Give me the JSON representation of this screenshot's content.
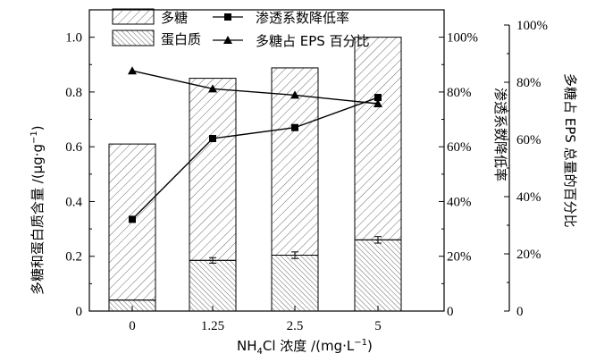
{
  "chart_data": {
    "type": "bar",
    "categories": [
      "0",
      "1.25",
      "2.5",
      "5"
    ],
    "series": [
      {
        "name": "多糖",
        "kind": "stacked-bar",
        "axis": "left",
        "values": [
          0.57,
          0.665,
          0.684,
          0.74
        ]
      },
      {
        "name": "蛋白质",
        "kind": "stacked-bar",
        "axis": "left",
        "values": [
          0.04,
          0.185,
          0.204,
          0.26
        ],
        "errors": [
          0.0,
          0.01,
          0.012,
          0.012
        ]
      },
      {
        "name": "渗透系数降低率",
        "kind": "line",
        "marker": "square",
        "axis": "right1",
        "unit": "%",
        "values": [
          33.5,
          63,
          67,
          78
        ]
      },
      {
        "name": "多糖占 EPS 百分比",
        "kind": "line",
        "marker": "triangle",
        "axis": "right2",
        "unit": "%",
        "values": [
          84,
          77.7,
          75.5,
          72.5
        ]
      }
    ],
    "xlabel_parts": {
      "pre": "NH",
      "sub": "4",
      "post": "Cl 浓度 /(mg·L",
      "sup": "−1",
      "end": ")"
    },
    "ylabel_parts": {
      "pre": "多糖和蛋白质含量 /(μg·g",
      "sup": "−1",
      "end": ")"
    },
    "y2label": "渗透系数降低率",
    "y3label": "多糖占 EPS 总量的百分比",
    "ylim": [
      0,
      1.1
    ],
    "y2lim": [
      0,
      110
    ],
    "y3lim": [
      0,
      100
    ],
    "yticks": [
      "0",
      "0.2",
      "0.4",
      "0.6",
      "0.8",
      "1.0"
    ],
    "y2ticks": [
      "0",
      "20%",
      "40%",
      "60%",
      "80%",
      "100%"
    ],
    "y3ticks": [
      "0",
      "20%",
      "40%",
      "60%",
      "80%",
      "100%"
    ],
    "legend": [
      "多糖",
      "蛋白质",
      "渗透系数降低率",
      "多糖占 EPS 百分比"
    ]
  }
}
